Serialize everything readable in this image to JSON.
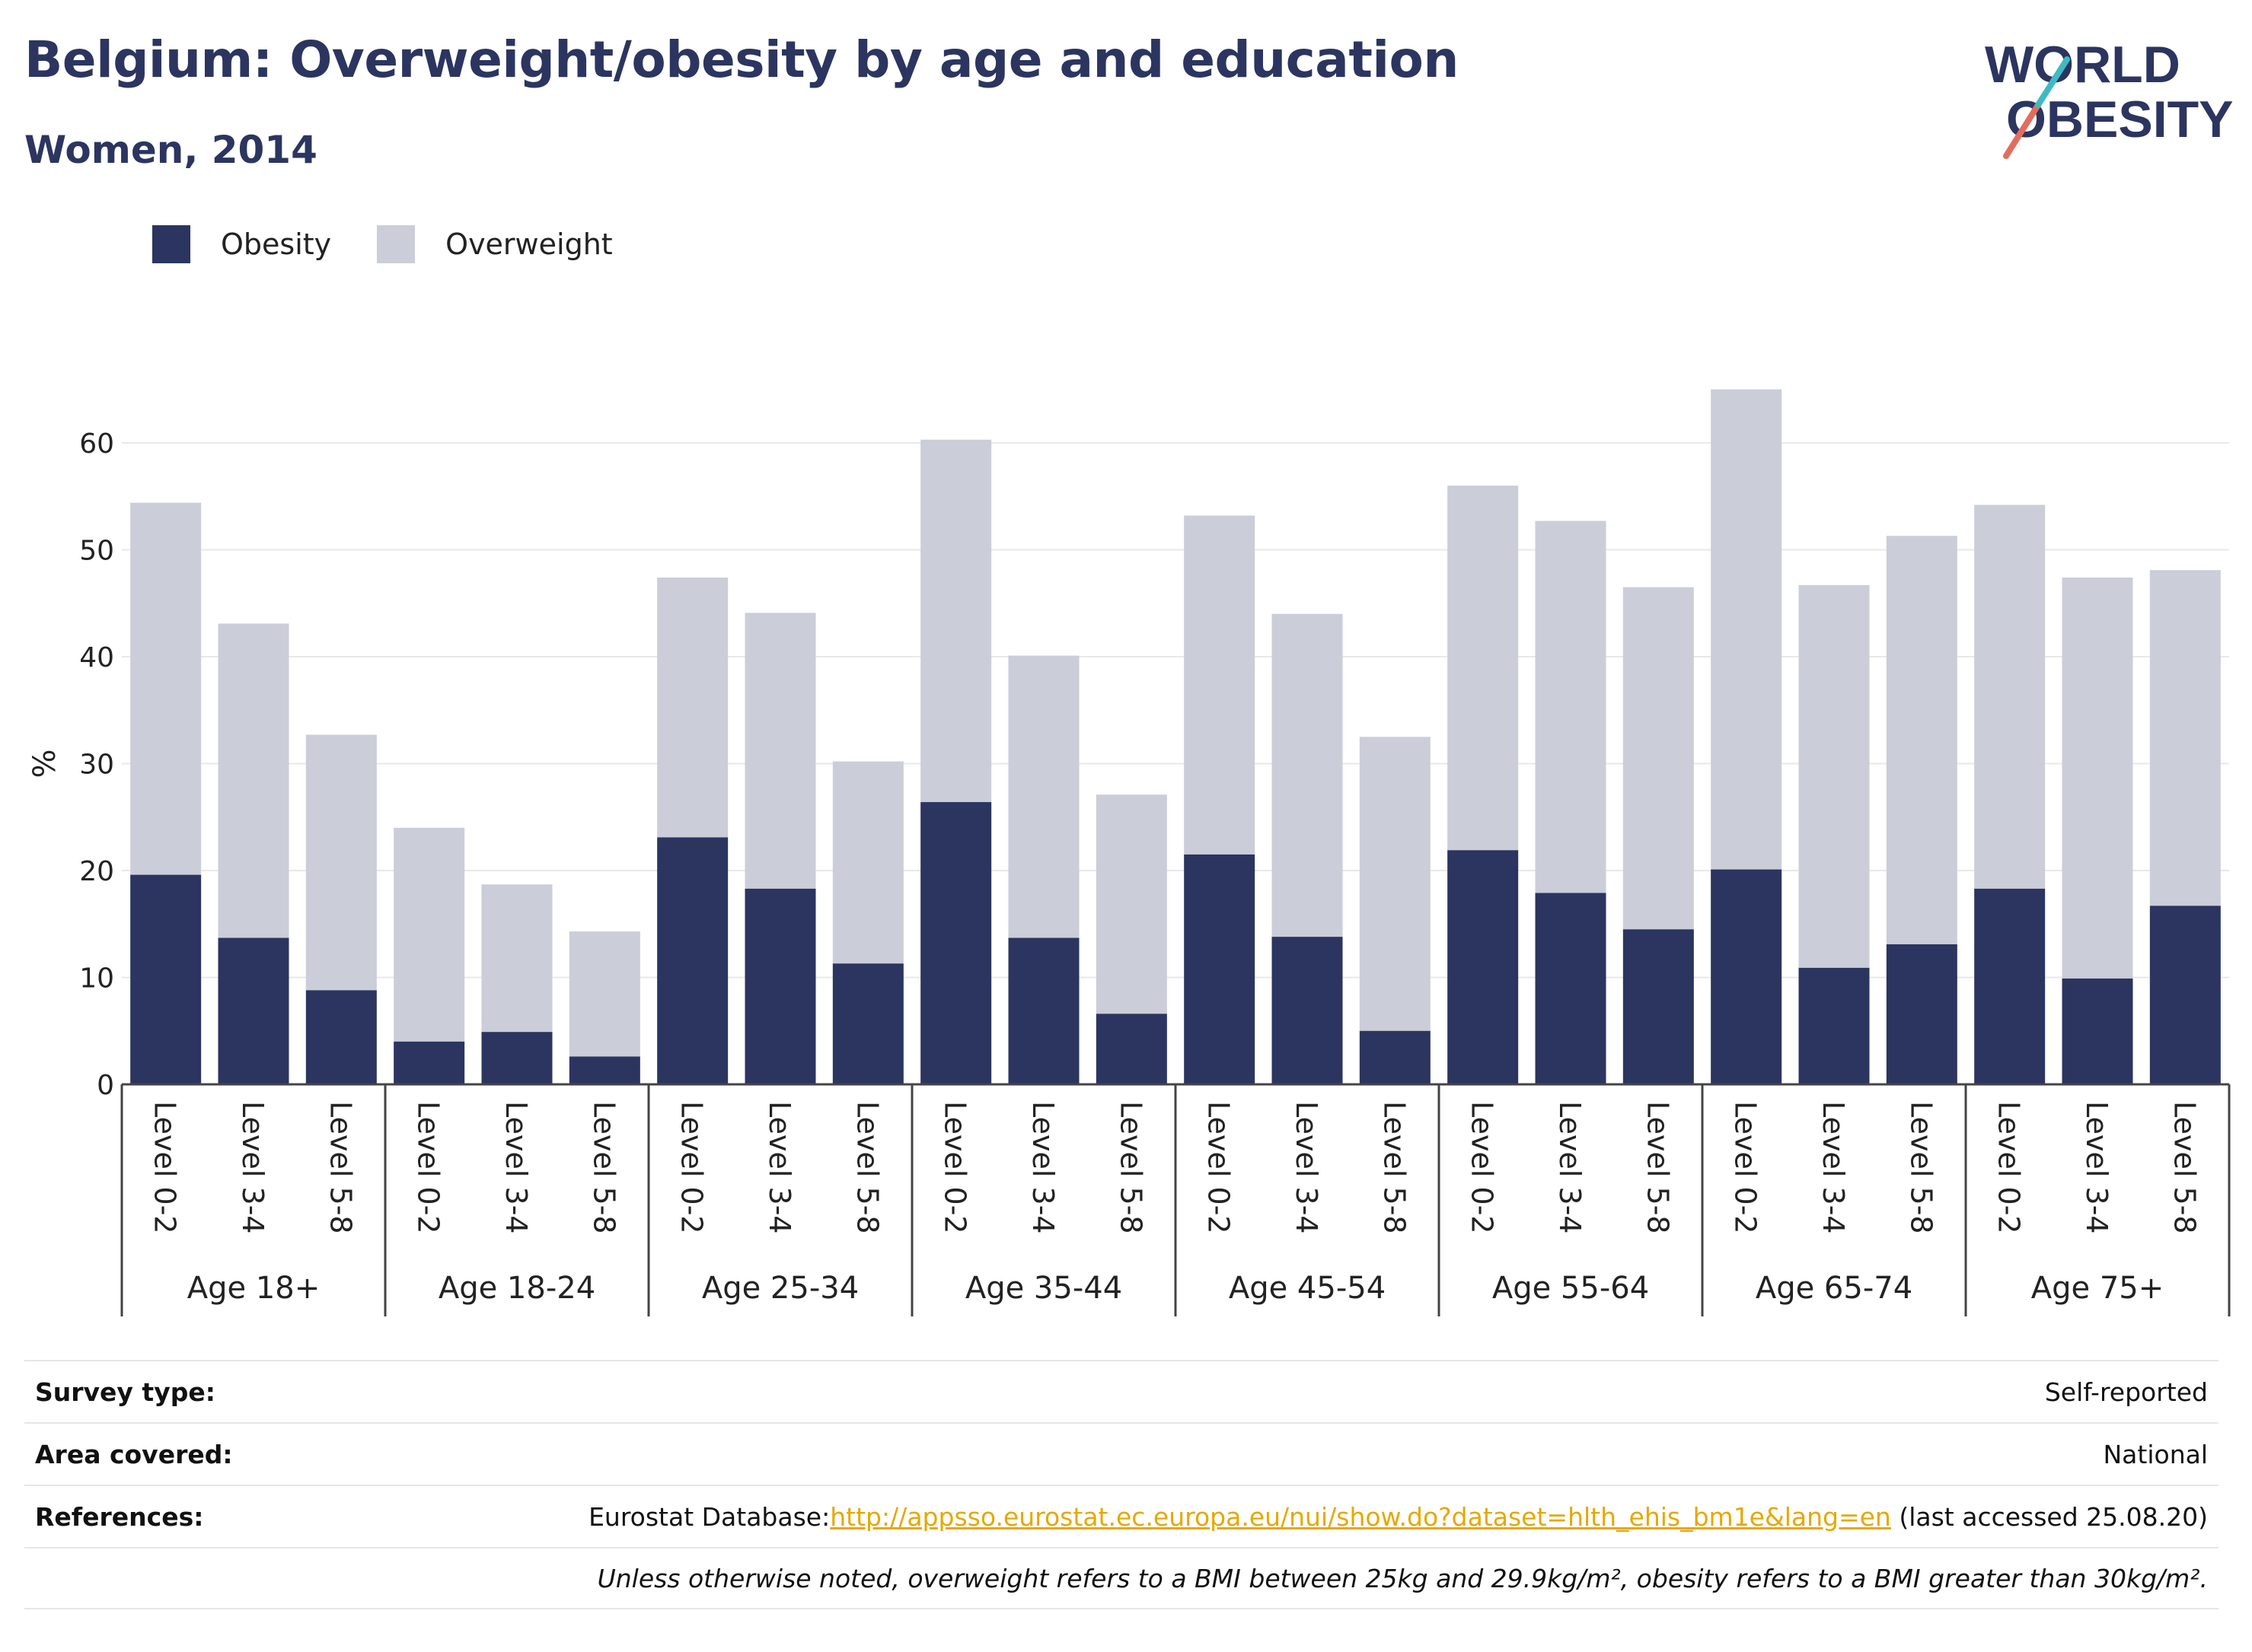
{
  "title": "Belgium: Overweight/obesity by age and education",
  "subtitle": "Women, 2014",
  "logo": {
    "line1": "WORLD",
    "line2": "OBESITY"
  },
  "colors": {
    "obesity": "#2b3560",
    "overweight": "#cbcdd8",
    "title": "#2b3560",
    "link": "#e6a800"
  },
  "legend": [
    {
      "label": "Obesity",
      "color": "#2b3560"
    },
    {
      "label": "Overweight",
      "color": "#cbcdd8"
    }
  ],
  "chart_data": {
    "type": "bar",
    "stacked": true,
    "ylabel": "%",
    "ylim": [
      0,
      70
    ],
    "yticks": [
      0,
      10,
      20,
      30,
      40,
      50,
      60
    ],
    "grid": true,
    "legend_position": "top-left",
    "groups": [
      {
        "label": "Age 18+",
        "categories": [
          "Level 0-2",
          "Level 3-4",
          "Level 5-8"
        ],
        "obesity": [
          19.6,
          13.7,
          8.8
        ],
        "total": [
          54.4,
          43.1,
          32.7
        ]
      },
      {
        "label": "Age 18-24",
        "categories": [
          "Level 0-2",
          "Level 3-4",
          "Level 5-8"
        ],
        "obesity": [
          4.0,
          4.9,
          2.6
        ],
        "total": [
          24.0,
          18.7,
          14.3
        ]
      },
      {
        "label": "Age 25-34",
        "categories": [
          "Level 0-2",
          "Level 3-4",
          "Level 5-8"
        ],
        "obesity": [
          23.1,
          18.3,
          11.3
        ],
        "total": [
          47.4,
          44.1,
          30.2
        ]
      },
      {
        "label": "Age 35-44",
        "categories": [
          "Level 0-2",
          "Level 3-4",
          "Level 5-8"
        ],
        "obesity": [
          26.4,
          13.7,
          6.6
        ],
        "total": [
          60.3,
          40.1,
          27.1
        ]
      },
      {
        "label": "Age 45-54",
        "categories": [
          "Level 0-2",
          "Level 3-4",
          "Level 5-8"
        ],
        "obesity": [
          21.5,
          13.8,
          5.0
        ],
        "total": [
          53.2,
          44.0,
          32.5
        ]
      },
      {
        "label": "Age 55-64",
        "categories": [
          "Level 0-2",
          "Level 3-4",
          "Level 5-8"
        ],
        "obesity": [
          21.9,
          17.9,
          14.5
        ],
        "total": [
          56.0,
          52.7,
          46.5
        ]
      },
      {
        "label": "Age 65-74",
        "categories": [
          "Level 0-2",
          "Level 3-4",
          "Level 5-8"
        ],
        "obesity": [
          20.1,
          10.9,
          13.1
        ],
        "total": [
          65.0,
          46.7,
          51.3
        ]
      },
      {
        "label": "Age 75+",
        "categories": [
          "Level 0-2",
          "Level 3-4",
          "Level 5-8"
        ],
        "obesity": [
          18.3,
          9.9,
          16.7
        ],
        "total": [
          54.2,
          47.4,
          48.1
        ]
      }
    ]
  },
  "info": {
    "survey_type_label": "Survey type:",
    "survey_type_value": "Self-reported",
    "area_label": "Area covered:",
    "area_value": "National",
    "references_label": "References:",
    "references_prefix": "Eurostat Database:",
    "references_link": "http://appsso.eurostat.ec.europa.eu/nui/show.do?dataset=hlth_ehis_bm1e&lang=en",
    "references_suffix": " (last accessed 25.08.20)",
    "note": "Unless otherwise noted, overweight refers to a BMI between 25kg and 29.9kg/m², obesity refers to a BMI greater than 30kg/m²."
  }
}
